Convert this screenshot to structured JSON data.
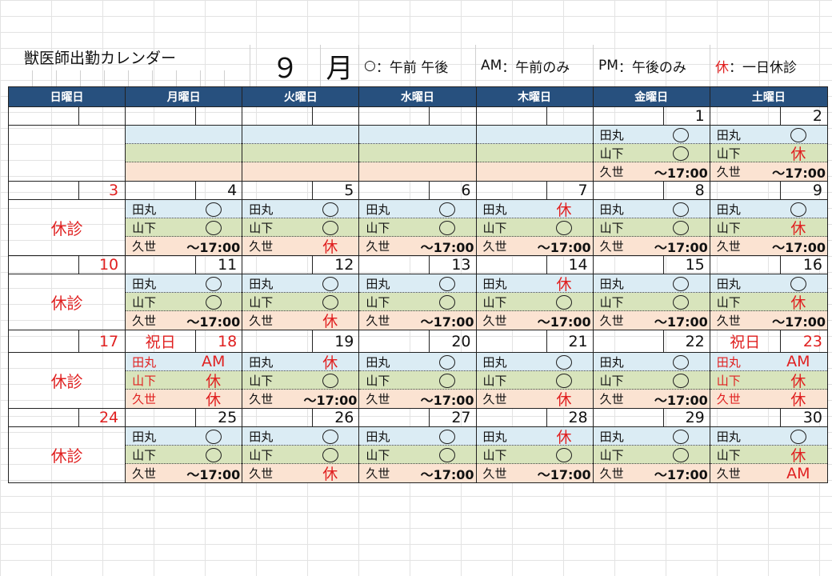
{
  "title": "獣医師出勤カレンダー",
  "month_number": "９",
  "month_unit": "月",
  "legend": [
    {
      "mark": "○",
      "sep": "：",
      "text": "午前 午後",
      "color": ""
    },
    {
      "mark": "AM",
      "sep": "：",
      "text": "午前のみ",
      "color": ""
    },
    {
      "mark": "PM",
      "sep": "：",
      "text": "午後のみ",
      "color": ""
    },
    {
      "mark": "休",
      "sep": "：",
      "text": "一日休診",
      "color": "#e02020"
    }
  ],
  "weekdays": [
    "日曜日",
    "月曜日",
    "火曜日",
    "水曜日",
    "木曜日",
    "金曜日",
    "土曜日"
  ],
  "closed_label": "休診",
  "holiday_label": "祝日",
  "weeks": [
    {
      "sunday": {
        "date": "",
        "closed": false
      },
      "days": [
        {
          "date": "",
          "holiday": false,
          "slots": []
        },
        {
          "date": "",
          "holiday": false,
          "slots": []
        },
        {
          "date": "",
          "holiday": false,
          "slots": []
        },
        {
          "date": "",
          "holiday": false,
          "slots": []
        },
        {
          "date": "1",
          "holiday": false,
          "slots": [
            {
              "name": "田丸",
              "value": "circle"
            },
            {
              "name": "山下",
              "value": "circle"
            },
            {
              "name": "久世",
              "value": "～17:00"
            }
          ]
        },
        {
          "date": "2",
          "holiday": false,
          "slots": [
            {
              "name": "田丸",
              "value": "circle"
            },
            {
              "name": "山下",
              "value": "休"
            },
            {
              "name": "久世",
              "value": "～17:00"
            }
          ]
        }
      ]
    },
    {
      "sunday": {
        "date": "3",
        "closed": true
      },
      "days": [
        {
          "date": "4",
          "holiday": false,
          "slots": [
            {
              "name": "田丸",
              "value": "circle"
            },
            {
              "name": "山下",
              "value": "circle"
            },
            {
              "name": "久世",
              "value": "～17:00"
            }
          ]
        },
        {
          "date": "5",
          "holiday": false,
          "slots": [
            {
              "name": "田丸",
              "value": "circle"
            },
            {
              "name": "山下",
              "value": "circle"
            },
            {
              "name": "久世",
              "value": "休"
            }
          ]
        },
        {
          "date": "6",
          "holiday": false,
          "slots": [
            {
              "name": "田丸",
              "value": "circle"
            },
            {
              "name": "山下",
              "value": "circle"
            },
            {
              "name": "久世",
              "value": "～17:00"
            }
          ]
        },
        {
          "date": "7",
          "holiday": false,
          "slots": [
            {
              "name": "田丸",
              "value": "休"
            },
            {
              "name": "山下",
              "value": "circle"
            },
            {
              "name": "久世",
              "value": "～17:00"
            }
          ]
        },
        {
          "date": "8",
          "holiday": false,
          "slots": [
            {
              "name": "田丸",
              "value": "circle"
            },
            {
              "name": "山下",
              "value": "circle"
            },
            {
              "name": "久世",
              "value": "～17:00"
            }
          ]
        },
        {
          "date": "9",
          "holiday": false,
          "slots": [
            {
              "name": "田丸",
              "value": "circle"
            },
            {
              "name": "山下",
              "value": "休"
            },
            {
              "name": "久世",
              "value": "～17:00"
            }
          ]
        }
      ]
    },
    {
      "sunday": {
        "date": "10",
        "closed": true
      },
      "days": [
        {
          "date": "11",
          "holiday": false,
          "slots": [
            {
              "name": "田丸",
              "value": "circle"
            },
            {
              "name": "山下",
              "value": "circle"
            },
            {
              "name": "久世",
              "value": "～17:00"
            }
          ]
        },
        {
          "date": "12",
          "holiday": false,
          "slots": [
            {
              "name": "田丸",
              "value": "circle"
            },
            {
              "name": "山下",
              "value": "circle"
            },
            {
              "name": "久世",
              "value": "休"
            }
          ]
        },
        {
          "date": "13",
          "holiday": false,
          "slots": [
            {
              "name": "田丸",
              "value": "circle"
            },
            {
              "name": "山下",
              "value": "circle"
            },
            {
              "name": "久世",
              "value": "～17:00"
            }
          ]
        },
        {
          "date": "14",
          "holiday": false,
          "slots": [
            {
              "name": "田丸",
              "value": "休"
            },
            {
              "name": "山下",
              "value": "circle"
            },
            {
              "name": "久世",
              "value": "～17:00"
            }
          ]
        },
        {
          "date": "15",
          "holiday": false,
          "slots": [
            {
              "name": "田丸",
              "value": "circle"
            },
            {
              "name": "山下",
              "value": "circle"
            },
            {
              "name": "久世",
              "value": "～17:00"
            }
          ]
        },
        {
          "date": "16",
          "holiday": false,
          "slots": [
            {
              "name": "田丸",
              "value": "circle"
            },
            {
              "name": "山下",
              "value": "休"
            },
            {
              "name": "久世",
              "value": "～17:00"
            }
          ]
        }
      ]
    },
    {
      "sunday": {
        "date": "17",
        "closed": true
      },
      "days": [
        {
          "date": "18",
          "holiday": true,
          "slots": [
            {
              "name": "田丸",
              "value": "AM"
            },
            {
              "name": "山下",
              "value": "休"
            },
            {
              "name": "久世",
              "value": "休"
            }
          ]
        },
        {
          "date": "19",
          "holiday": false,
          "slots": [
            {
              "name": "田丸",
              "value": "休"
            },
            {
              "name": "山下",
              "value": "circle"
            },
            {
              "name": "久世",
              "value": "～17:00"
            }
          ]
        },
        {
          "date": "20",
          "holiday": false,
          "slots": [
            {
              "name": "田丸",
              "value": "circle"
            },
            {
              "name": "山下",
              "value": "circle"
            },
            {
              "name": "久世",
              "value": "～17:00"
            }
          ]
        },
        {
          "date": "21",
          "holiday": false,
          "slots": [
            {
              "name": "田丸",
              "value": "circle"
            },
            {
              "name": "山下",
              "value": "circle"
            },
            {
              "name": "久世",
              "value": "休"
            }
          ]
        },
        {
          "date": "22",
          "holiday": false,
          "slots": [
            {
              "name": "田丸",
              "value": "circle"
            },
            {
              "name": "山下",
              "value": "circle"
            },
            {
              "name": "久世",
              "value": "～17:00"
            }
          ]
        },
        {
          "date": "23",
          "holiday": true,
          "slots": [
            {
              "name": "田丸",
              "value": "AM"
            },
            {
              "name": "山下",
              "value": "休"
            },
            {
              "name": "久世",
              "value": "休"
            }
          ]
        }
      ]
    },
    {
      "sunday": {
        "date": "24",
        "closed": true
      },
      "days": [
        {
          "date": "25",
          "holiday": false,
          "slots": [
            {
              "name": "田丸",
              "value": "circle"
            },
            {
              "name": "山下",
              "value": "circle"
            },
            {
              "name": "久世",
              "value": "～17:00"
            }
          ]
        },
        {
          "date": "26",
          "holiday": false,
          "slots": [
            {
              "name": "田丸",
              "value": "circle"
            },
            {
              "name": "山下",
              "value": "circle"
            },
            {
              "name": "久世",
              "value": "休"
            }
          ]
        },
        {
          "date": "27",
          "holiday": false,
          "slots": [
            {
              "name": "田丸",
              "value": "circle"
            },
            {
              "name": "山下",
              "value": "circle"
            },
            {
              "name": "久世",
              "value": "～17:00"
            }
          ]
        },
        {
          "date": "28",
          "holiday": false,
          "slots": [
            {
              "name": "田丸",
              "value": "休"
            },
            {
              "name": "山下",
              "value": "circle"
            },
            {
              "name": "久世",
              "value": "～17:00"
            }
          ]
        },
        {
          "date": "29",
          "holiday": false,
          "slots": [
            {
              "name": "田丸",
              "value": "circle"
            },
            {
              "name": "山下",
              "value": "circle"
            },
            {
              "name": "久世",
              "value": "～17:00"
            }
          ]
        },
        {
          "date": "30",
          "holiday": false,
          "slots": [
            {
              "name": "田丸",
              "value": "circle"
            },
            {
              "name": "山下",
              "value": "休"
            },
            {
              "name": "久世",
              "value": "AM"
            }
          ]
        }
      ]
    }
  ]
}
